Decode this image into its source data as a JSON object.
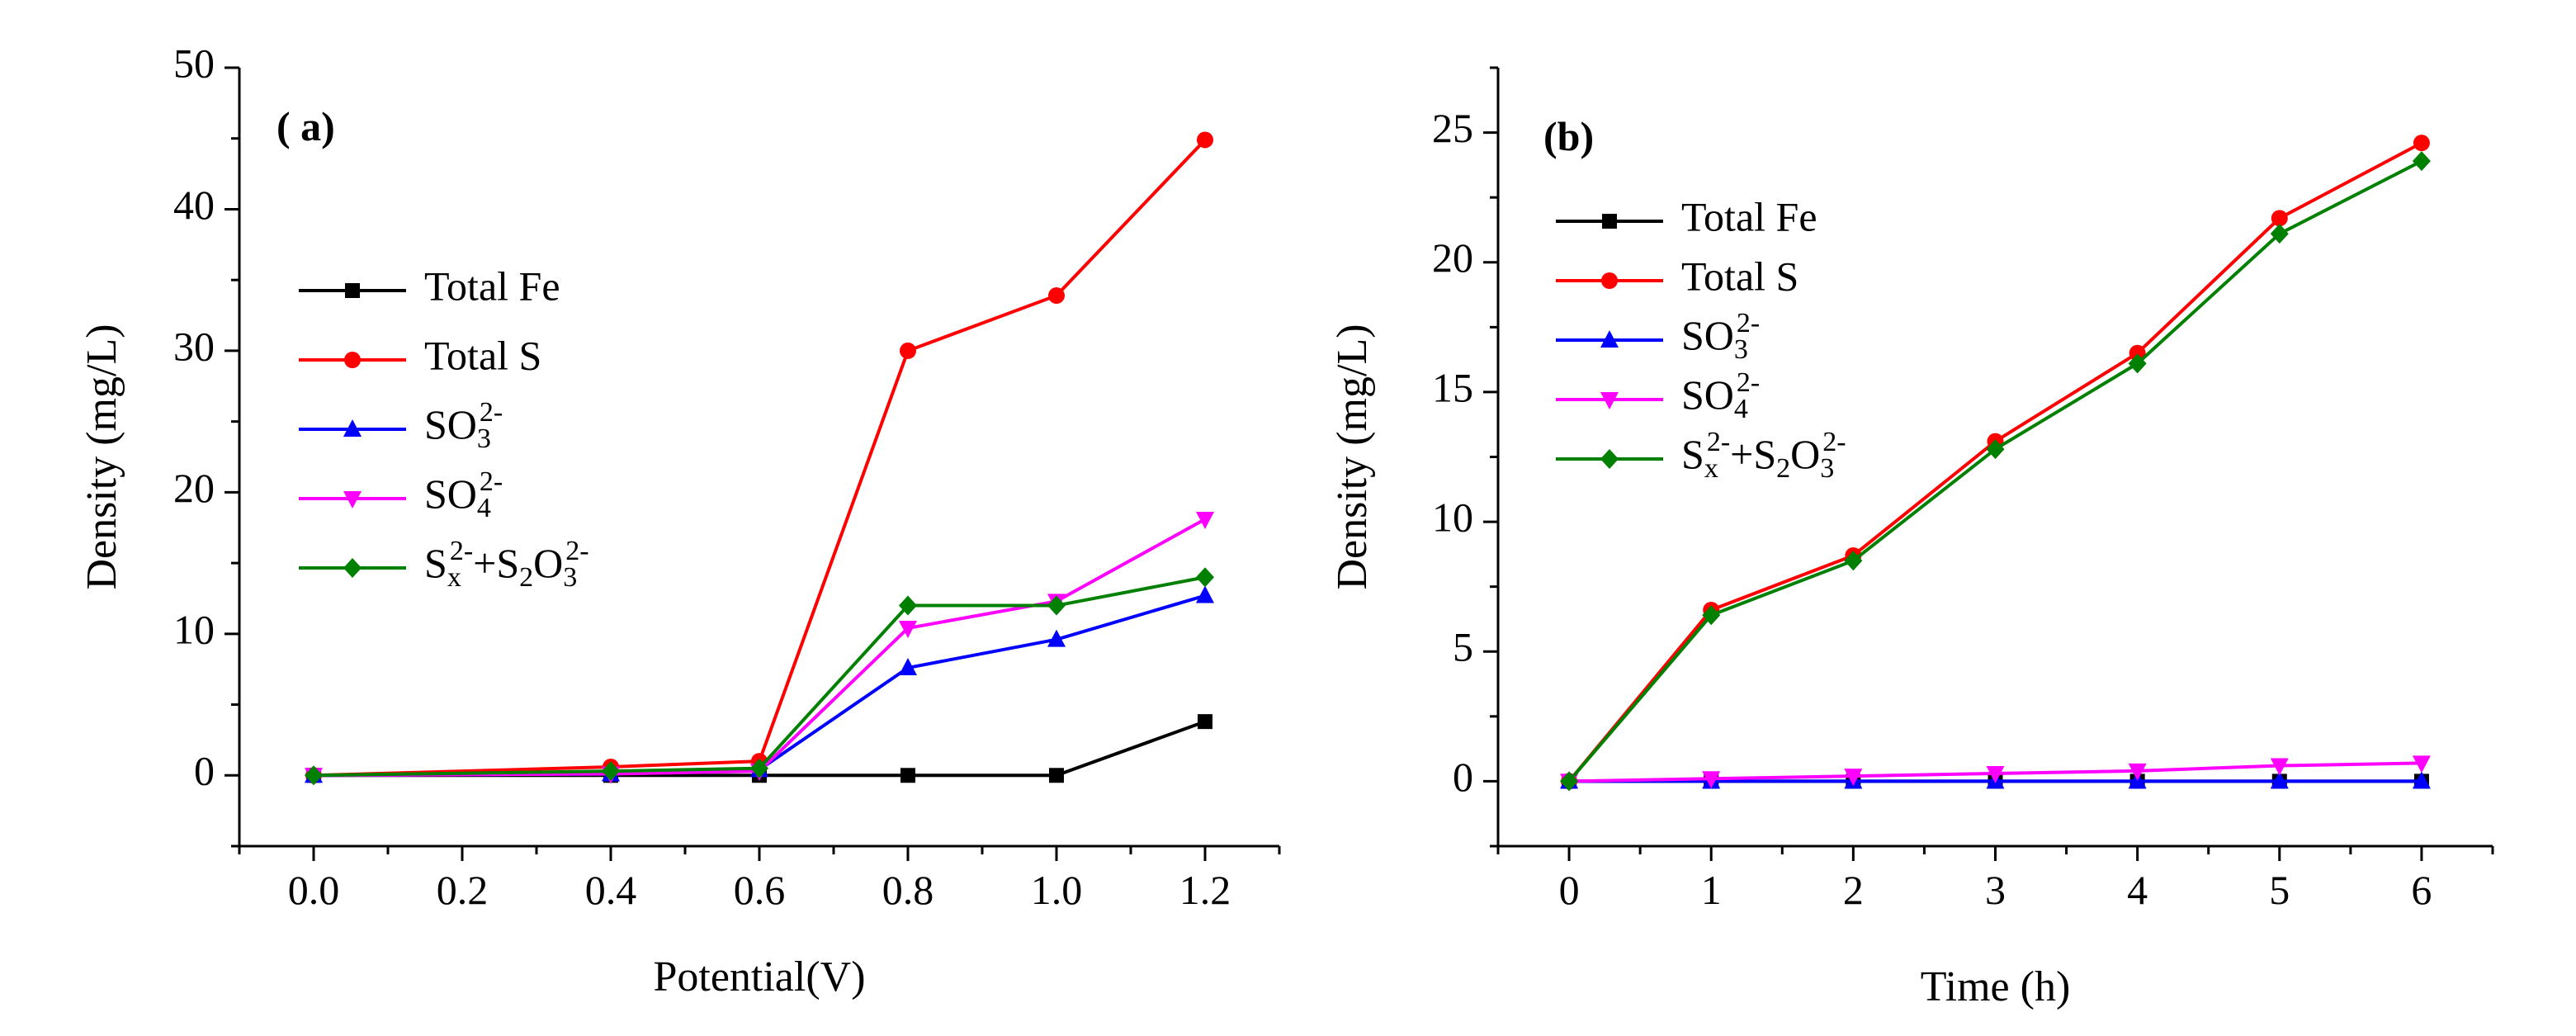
{
  "chart_data": [
    {
      "type": "line",
      "panel_label": "( a)",
      "xlabel": "Potential(V)",
      "ylabel": "Density (mg/L)",
      "xlim": [
        -0.1,
        1.3
      ],
      "ylim": [
        -5,
        50
      ],
      "x_ticks": [
        0.0,
        0.2,
        0.4,
        0.6,
        0.8,
        1.0,
        1.2
      ],
      "x_tick_labels": [
        "0.0",
        "0.2",
        "0.4",
        "0.6",
        "0.8",
        "1.0",
        "1.2"
      ],
      "y_ticks": [
        0,
        10,
        20,
        30,
        40,
        50
      ],
      "y_tick_labels": [
        "0",
        "10",
        "20",
        "30",
        "40",
        "50"
      ],
      "legend_position": "middle-left",
      "x": [
        0.0,
        0.4,
        0.6,
        0.8,
        1.0,
        1.2
      ],
      "series": [
        {
          "name": "Total Fe",
          "color": "#000000",
          "marker": "square",
          "values": [
            0,
            0,
            0,
            0,
            0,
            3.8
          ]
        },
        {
          "name": "Total S",
          "color": "#ff0000",
          "marker": "circle",
          "values": [
            0,
            0.6,
            1.0,
            30.0,
            33.9,
            44.9
          ]
        },
        {
          "name": "SO3 2-",
          "label_base": "SO",
          "label_sub": "3",
          "label_sup": "2-",
          "color": "#0000ff",
          "marker": "triangle-up",
          "values": [
            0,
            0.1,
            0.4,
            7.6,
            9.6,
            12.7
          ]
        },
        {
          "name": "SO4 2-",
          "label_base": "SO",
          "label_sub": "4",
          "label_sup": "2-",
          "color": "#ff00ff",
          "marker": "triangle-down",
          "values": [
            0,
            0.1,
            0.3,
            10.4,
            12.3,
            18.1
          ]
        },
        {
          "name": "Sx2- + S2O3 2-",
          "label_parts": [
            "S",
            "x",
            "2-",
            "+S",
            "2",
            "O",
            "3",
            "2-"
          ],
          "color": "#008000",
          "marker": "diamond",
          "values": [
            0,
            0.3,
            0.5,
            12.0,
            12.0,
            14.0
          ]
        }
      ]
    },
    {
      "type": "line",
      "panel_label": "(b)",
      "xlabel": "Time (h)",
      "ylabel": "Density (mg/L)",
      "xlim": [
        -0.5,
        6.5
      ],
      "ylim": [
        -2.5,
        27.5
      ],
      "x_ticks": [
        0,
        1,
        2,
        3,
        4,
        5,
        6
      ],
      "x_tick_labels": [
        "0",
        "1",
        "2",
        "3",
        "4",
        "5",
        "6"
      ],
      "y_ticks": [
        0,
        5,
        10,
        15,
        20,
        25
      ],
      "y_tick_labels": [
        "0",
        "5",
        "10",
        "15",
        "20",
        "25"
      ],
      "legend_position": "top-left",
      "x": [
        0,
        1,
        2,
        3,
        4,
        5,
        6
      ],
      "series": [
        {
          "name": "Total Fe",
          "color": "#000000",
          "marker": "square",
          "values": [
            0,
            0,
            0,
            0,
            0,
            0,
            0
          ]
        },
        {
          "name": "Total S",
          "color": "#ff0000",
          "marker": "circle",
          "values": [
            0,
            6.6,
            8.7,
            13.1,
            16.5,
            21.7,
            24.6
          ]
        },
        {
          "name": "SO3 2-",
          "label_base": "SO",
          "label_sub": "3",
          "label_sup": "2-",
          "color": "#0000ff",
          "marker": "triangle-up",
          "values": [
            0,
            0,
            0,
            0,
            0,
            0,
            0
          ]
        },
        {
          "name": "SO4 2-",
          "label_base": "SO",
          "label_sub": "4",
          "label_sup": "2-",
          "color": "#ff00ff",
          "marker": "triangle-down",
          "values": [
            0,
            0.1,
            0.2,
            0.3,
            0.4,
            0.6,
            0.7
          ]
        },
        {
          "name": "Sx2- + S2O3 2-",
          "label_parts": [
            "S",
            "x",
            "2-",
            "+S",
            "2",
            "O",
            "3",
            "2-"
          ],
          "color": "#008000",
          "marker": "diamond",
          "values": [
            0,
            6.4,
            8.5,
            12.8,
            16.1,
            21.1,
            23.9
          ]
        }
      ]
    }
  ]
}
